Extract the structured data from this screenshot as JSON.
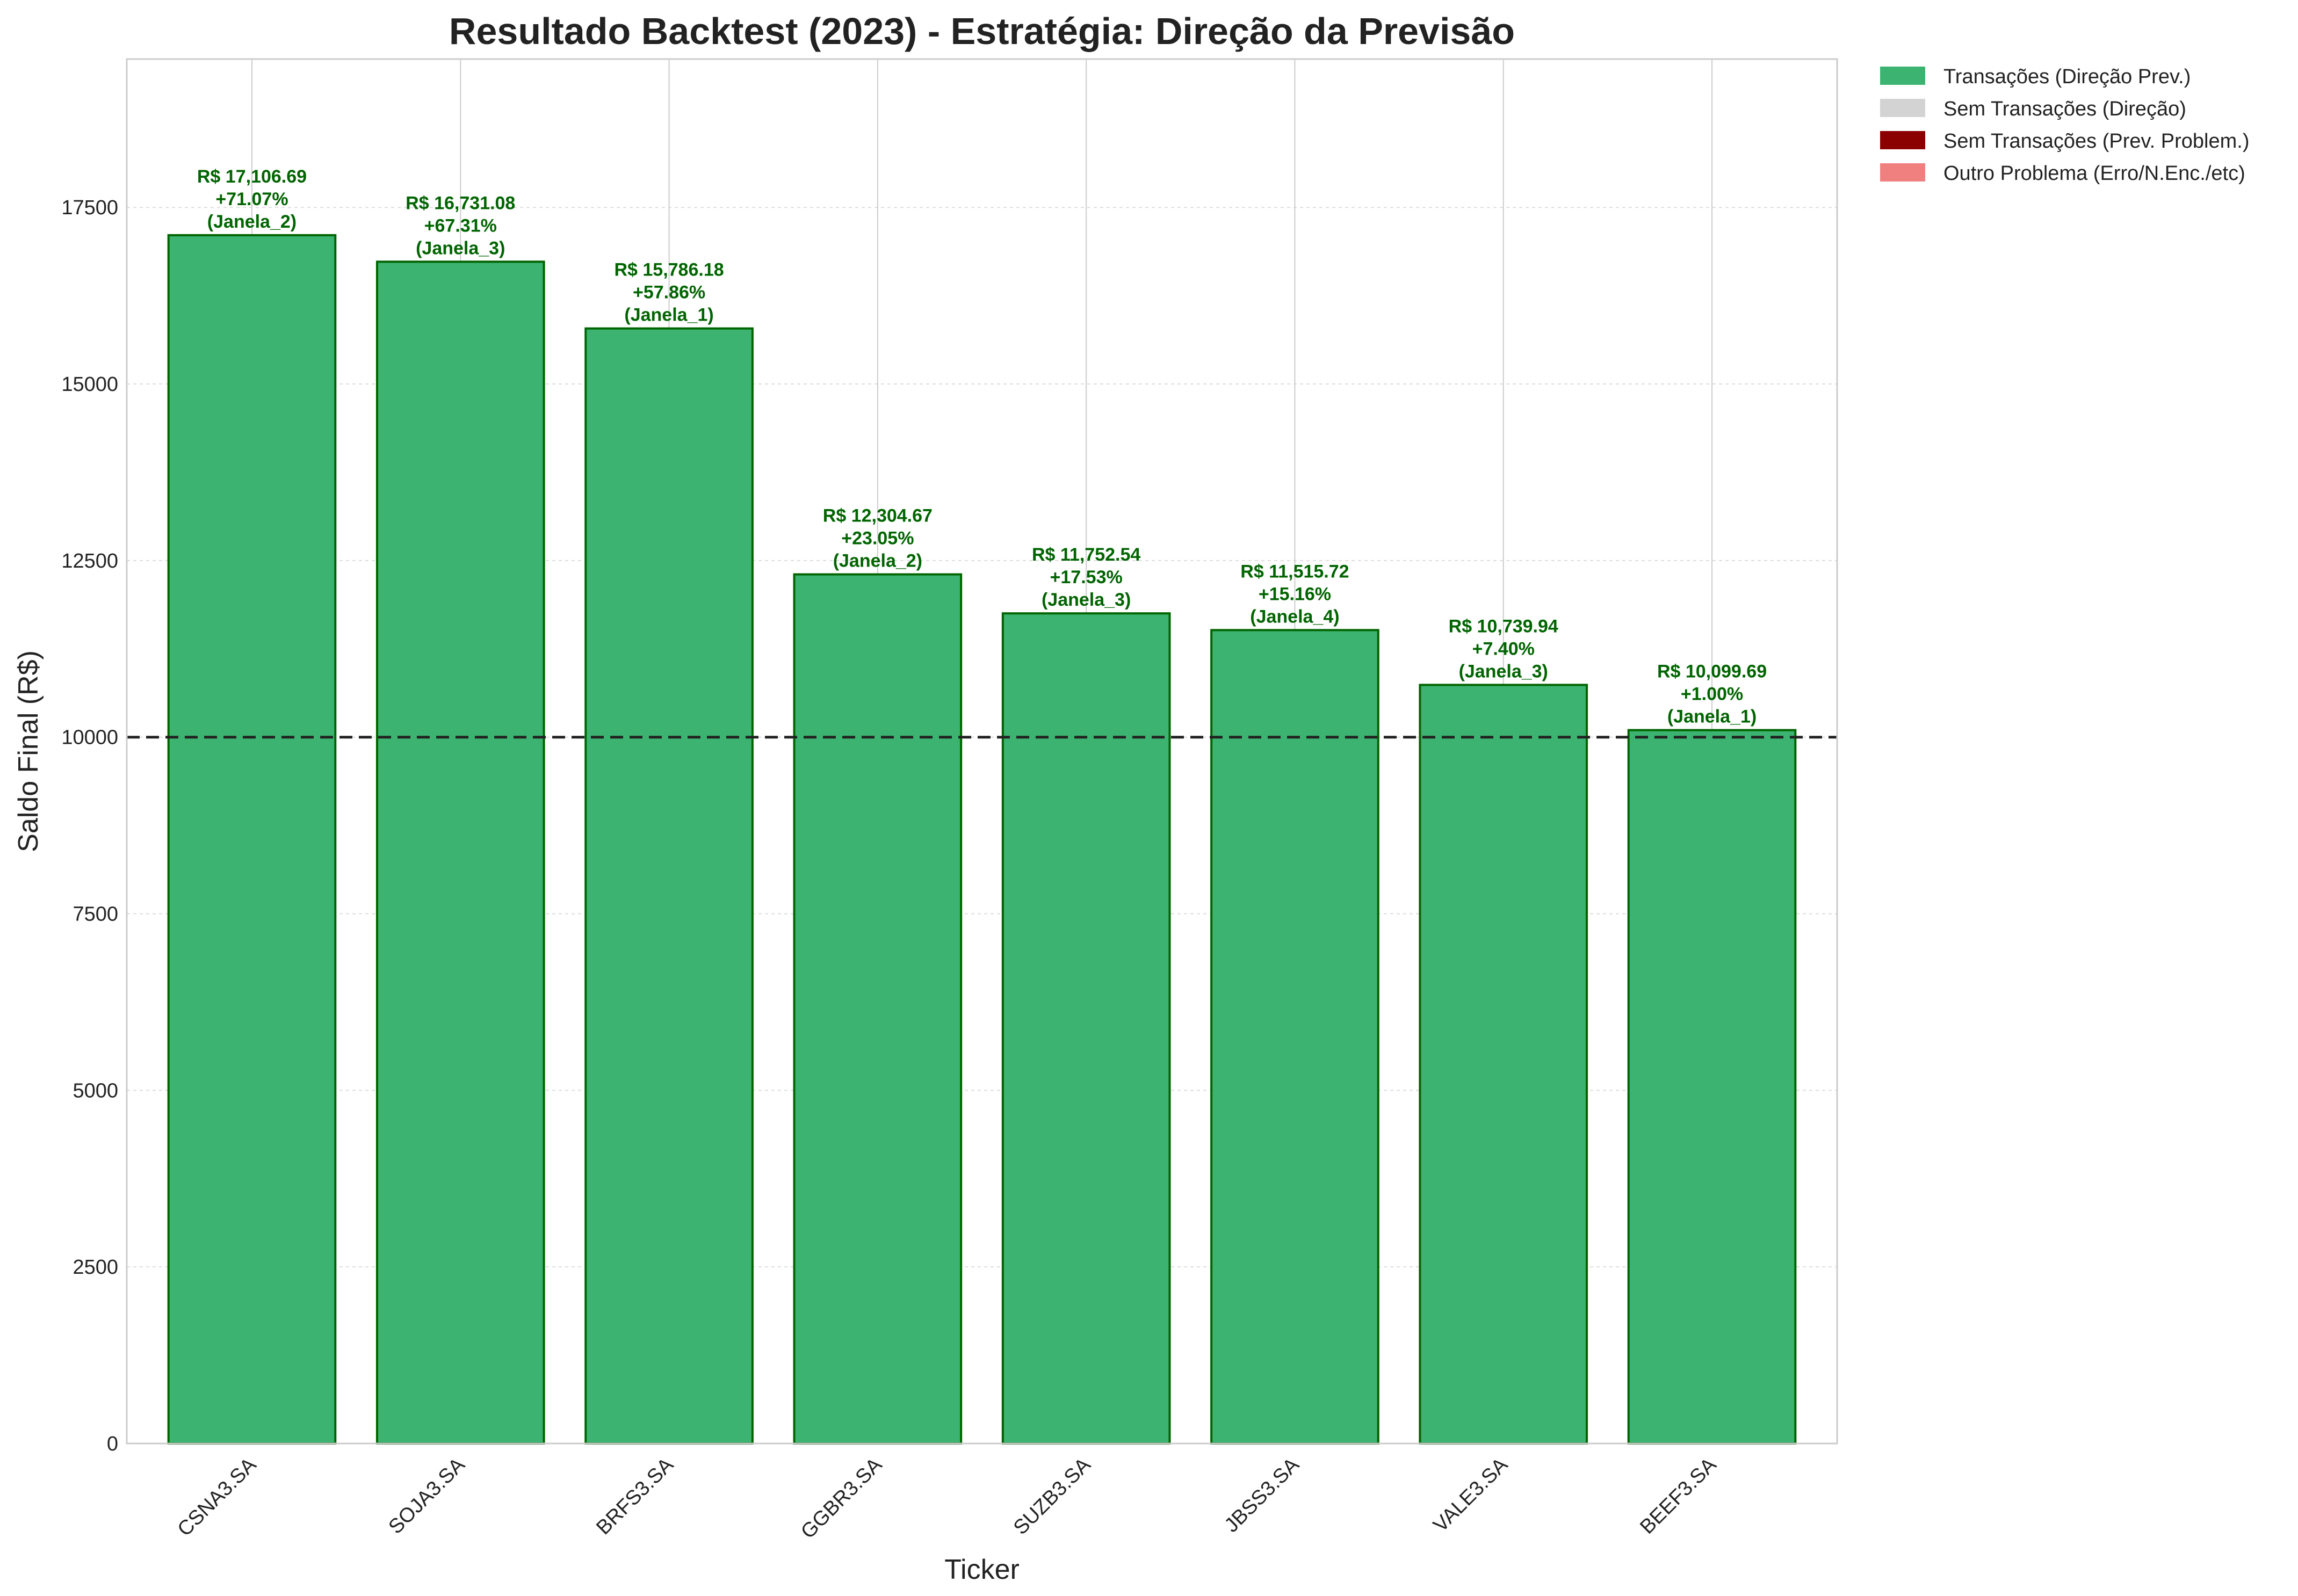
{
  "chart_data": {
    "type": "bar",
    "title": "Resultado Backtest (2023) - Estratégia: Direção da Previsão",
    "xlabel": "Ticker",
    "ylabel": "Saldo Final (R$)",
    "ylim": [
      0,
      19600
    ],
    "yticks": [
      0,
      2500,
      5000,
      7500,
      10000,
      12500,
      15000,
      17500
    ],
    "reference_line": {
      "value": 10000,
      "style": "dashed",
      "color": "#222222"
    },
    "grid": true,
    "legend_position": "outside-top-right",
    "categories": [
      "CSNA3.SA",
      "SOJA3.SA",
      "BRFS3.SA",
      "GGBR3.SA",
      "SUZB3.SA",
      "JBSS3.SA",
      "VALE3.SA",
      "BEEF3.SA"
    ],
    "values": [
      17106.69,
      16731.08,
      15786.18,
      12304.67,
      11752.54,
      11515.72,
      10739.94,
      10099.69
    ],
    "data_labels": [
      [
        "R$ 17,106.69",
        "+71.07%",
        "(Janela_2)"
      ],
      [
        "R$ 16,731.08",
        "+67.31%",
        "(Janela_3)"
      ],
      [
        "R$ 15,786.18",
        "+57.86%",
        "(Janela_1)"
      ],
      [
        "R$ 12,304.67",
        "+23.05%",
        "(Janela_2)"
      ],
      [
        "R$ 11,752.54",
        "+17.53%",
        "(Janela_3)"
      ],
      [
        "R$ 11,515.72",
        "+15.16%",
        "(Janela_4)"
      ],
      [
        "R$ 10,739.94",
        "+7.40%",
        "(Janela_3)"
      ],
      [
        "R$ 10,099.69",
        "+1.00%",
        "(Janela_1)"
      ]
    ],
    "bar_color": "#3cb371",
    "bar_edge_color": "#006400",
    "label_color": "#006400",
    "legend": [
      {
        "label": "Transações (Direção Prev.)",
        "color": "#3cb371"
      },
      {
        "label": "Sem Transações (Direção)",
        "color": "#d3d3d3"
      },
      {
        "label": "Sem Transações (Prev. Problem.)",
        "color": "#8b0000"
      },
      {
        "label": "Outro Problema (Erro/N.Enc./etc)",
        "color": "#f08080"
      }
    ]
  }
}
